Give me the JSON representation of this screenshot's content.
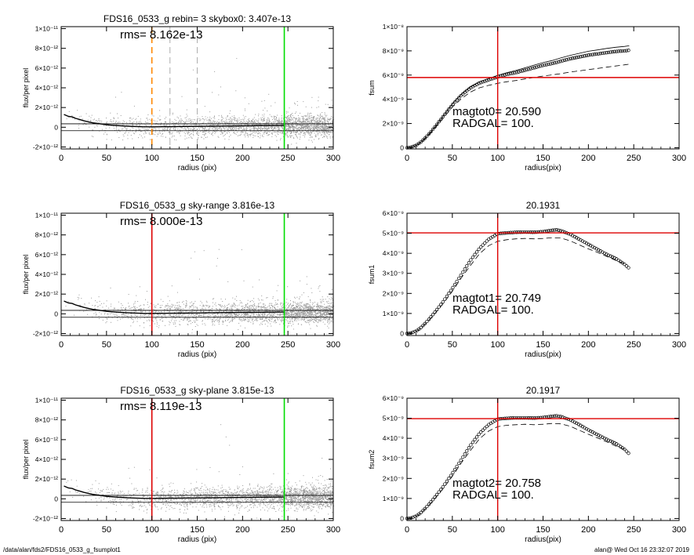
{
  "footer": {
    "path": "/data/alan/fds2/FDS16_0533_g_fsumplot1",
    "stamp": "alan@  Wed Oct 16 23:32:07 2019"
  },
  "chart_data": [
    {
      "type": "scatter",
      "title": "FDS16_0533_g rebin= 3    skybox0:  3.407e-13",
      "annotation": "rms= 8.162e-13",
      "xlabel": "radius (pix)",
      "ylabel": "flux/per pixel",
      "xlim": [
        0,
        300
      ],
      "ylim": [
        -2.2e-12,
        1.02e-11
      ],
      "xticks": [
        "0",
        "50",
        "100",
        "150",
        "200",
        "250",
        "300"
      ],
      "yticks": [
        {
          "v": -2e-12,
          "label": "-2×10⁻¹²"
        },
        {
          "v": 0,
          "label": "0"
        },
        {
          "v": 2e-12,
          "label": "2×10⁻¹²"
        },
        {
          "v": 4e-12,
          "label": "4×10⁻¹²"
        },
        {
          "v": 6e-12,
          "label": "6×10⁻¹²"
        },
        {
          "v": 8e-12,
          "label": "8×10⁻¹²"
        },
        {
          "v": 1e-11,
          "label": "1×10⁻¹¹"
        }
      ],
      "vlines": [
        {
          "x": 100,
          "color": "#ff8800",
          "dash": true
        },
        {
          "x": 120,
          "color": "#9a9a9a",
          "dash": true
        },
        {
          "x": 150,
          "color": "#9a9a9a",
          "dash": true
        },
        {
          "x": 246,
          "color": "#00dd00",
          "dash": false
        }
      ],
      "profile": {
        "x": [
          3,
          8,
          12,
          16,
          20,
          25,
          30,
          35,
          40,
          45,
          50,
          60,
          70,
          80,
          90,
          100,
          120,
          140,
          160,
          180,
          200,
          220,
          246
        ],
        "y": [
          1.3e-12,
          1.1e-12,
          1.05e-12,
          9e-13,
          8e-13,
          6.5e-13,
          5.5e-13,
          4.5e-13,
          3.8e-13,
          3.2e-13,
          2.5e-13,
          1.8e-13,
          1.2e-13,
          8e-14,
          5e-14,
          4e-14,
          6e-14,
          8e-14,
          1e-13,
          1.2e-13,
          1.4e-13,
          1.6e-13,
          1.8e-13
        ]
      },
      "hlines": [
        3.5e-13,
        -3.5e-13
      ],
      "scatter_seed": 11
    },
    {
      "type": "line",
      "title": "",
      "xlabel": "radius(pix)",
      "ylabel": "fsum",
      "xlim": [
        0,
        300
      ],
      "ylim": [
        -1e-10,
        1e-08
      ],
      "xticks": [
        "0",
        "50",
        "100",
        "150",
        "200",
        "250",
        "300"
      ],
      "yticks": [
        {
          "v": 0,
          "label": "0"
        },
        {
          "v": 2e-09,
          "label": "2×10⁻⁹"
        },
        {
          "v": 4e-09,
          "label": "4×10⁻⁹"
        },
        {
          "v": 6e-09,
          "label": "6×10⁻⁹"
        },
        {
          "v": 8e-09,
          "label": "8×10⁻⁹"
        },
        {
          "v": 1e-08,
          "label": "1×10⁻⁸"
        }
      ],
      "annotations": [
        "magtot0=  20.590",
        "RADGAL=    100."
      ],
      "crosshair": {
        "x": 100,
        "y": 5.8e-09
      },
      "series": [
        {
          "name": "fsum",
          "style": "circles",
          "x": [
            0,
            5,
            10,
            15,
            20,
            25,
            30,
            40,
            50,
            60,
            70,
            80,
            90,
            100,
            110,
            120,
            130,
            140,
            150,
            160,
            170,
            180,
            190,
            200,
            210,
            220,
            230,
            240,
            245
          ],
          "y": [
            0,
            5e-11,
            2e-10,
            4.5e-10,
            8e-10,
            1.2e-09,
            1.65e-09,
            2.6e-09,
            3.55e-09,
            4.35e-09,
            4.95e-09,
            5.35e-09,
            5.6e-09,
            5.85e-09,
            6.05e-09,
            6.2e-09,
            6.4e-09,
            6.6e-09,
            6.8e-09,
            6.95e-09,
            7.15e-09,
            7.35e-09,
            7.5e-09,
            7.65e-09,
            7.75e-09,
            7.85e-09,
            7.95e-09,
            8e-09,
            8.05e-09
          ]
        },
        {
          "name": "fsum-upper",
          "style": "solid",
          "x": [
            0,
            5,
            10,
            15,
            20,
            25,
            30,
            40,
            50,
            60,
            70,
            80,
            90,
            100,
            110,
            120,
            130,
            140,
            150,
            160,
            170,
            180,
            190,
            200,
            210,
            220,
            230,
            240,
            245
          ],
          "y": [
            0,
            5e-11,
            2e-10,
            4.5e-10,
            8e-10,
            1.2e-09,
            1.65e-09,
            2.62e-09,
            3.6e-09,
            4.4e-09,
            5.02e-09,
            5.45e-09,
            5.72e-09,
            5.98e-09,
            6.2e-09,
            6.38e-09,
            6.6e-09,
            6.82e-09,
            7.03e-09,
            7.2e-09,
            7.42e-09,
            7.63e-09,
            7.8e-09,
            7.97e-09,
            8.08e-09,
            8.2e-09,
            8.3e-09,
            8.37e-09,
            8.42e-09
          ]
        },
        {
          "name": "fsum-lower",
          "style": "dashed",
          "x": [
            0,
            5,
            10,
            15,
            20,
            25,
            30,
            40,
            50,
            60,
            70,
            80,
            90,
            100,
            110,
            120,
            130,
            140,
            150,
            160,
            170,
            180,
            190,
            200,
            210,
            220,
            230,
            240,
            245
          ],
          "y": [
            0,
            4e-11,
            1.8e-10,
            4.2e-10,
            7.5e-10,
            1.12e-09,
            1.55e-09,
            2.45e-09,
            3.35e-09,
            4.05e-09,
            4.6e-09,
            4.95e-09,
            5.15e-09,
            5.32e-09,
            5.45e-09,
            5.55e-09,
            5.68e-09,
            5.8e-09,
            5.92e-09,
            6.02e-09,
            6.12e-09,
            6.25e-09,
            6.35e-09,
            6.45e-09,
            6.55e-09,
            6.65e-09,
            6.75e-09,
            6.85e-09,
            6.9e-09
          ]
        }
      ]
    },
    {
      "type": "scatter",
      "title": "FDS16_0533_g sky-range  3.816e-13",
      "annotation": "rms= 8.000e-13",
      "xlabel": "radius (pix)",
      "ylabel": "flux/per pixel",
      "xlim": [
        0,
        300
      ],
      "ylim": [
        -2.2e-12,
        1.02e-11
      ],
      "xticks": [
        "0",
        "50",
        "100",
        "150",
        "200",
        "250",
        "300"
      ],
      "yticks": [
        {
          "v": -2e-12,
          "label": "-2×10⁻¹²"
        },
        {
          "v": 0,
          "label": "0"
        },
        {
          "v": 2e-12,
          "label": "2×10⁻¹²"
        },
        {
          "v": 4e-12,
          "label": "4×10⁻¹²"
        },
        {
          "v": 6e-12,
          "label": "6×10⁻¹²"
        },
        {
          "v": 8e-12,
          "label": "8×10⁻¹²"
        },
        {
          "v": 1e-11,
          "label": "1×10⁻¹¹"
        }
      ],
      "vlines": [
        {
          "x": 100,
          "color": "#dd0000",
          "dash": false
        },
        {
          "x": 246,
          "color": "#00dd00",
          "dash": false
        }
      ],
      "profile": {
        "x": [
          3,
          8,
          12,
          16,
          20,
          25,
          30,
          35,
          40,
          45,
          50,
          60,
          70,
          80,
          90,
          100,
          120,
          140,
          160,
          180,
          200,
          220,
          246
        ],
        "y": [
          1.3e-12,
          1.1e-12,
          1.05e-12,
          9e-13,
          8e-13,
          6.5e-13,
          5.5e-13,
          4.5e-13,
          3.8e-13,
          3.2e-13,
          2.5e-13,
          1.8e-13,
          1.2e-13,
          8e-14,
          5e-14,
          4e-14,
          6e-14,
          8e-14,
          1e-13,
          1.2e-13,
          1.4e-13,
          1.6e-13,
          1.8e-13
        ]
      },
      "hlines": [
        3.5e-13,
        -3.5e-13
      ],
      "scatter_seed": 23
    },
    {
      "type": "line",
      "title": "20.1931",
      "xlabel": "radius(pix)",
      "ylabel": "fsum1",
      "xlim": [
        0,
        300
      ],
      "ylim": [
        -1e-10,
        6e-09
      ],
      "xticks": [
        "0",
        "50",
        "100",
        "150",
        "200",
        "250",
        "300"
      ],
      "yticks": [
        {
          "v": 0,
          "label": "0"
        },
        {
          "v": 1e-09,
          "label": "1×10⁻⁹"
        },
        {
          "v": 2e-09,
          "label": "2×10⁻⁹"
        },
        {
          "v": 3e-09,
          "label": "3×10⁻⁹"
        },
        {
          "v": 4e-09,
          "label": "4×10⁻⁹"
        },
        {
          "v": 5e-09,
          "label": "5×10⁻⁹"
        },
        {
          "v": 6e-09,
          "label": "6×10⁻⁹"
        }
      ],
      "annotations": [
        "magtot1=  20.749",
        "RADGAL=    100."
      ],
      "crosshair": {
        "x": 100,
        "y": 5.02e-09
      },
      "series": [
        {
          "name": "fsum1",
          "style": "circles",
          "x": [
            0,
            5,
            10,
            15,
            20,
            25,
            30,
            40,
            50,
            60,
            70,
            80,
            90,
            100,
            110,
            120,
            130,
            140,
            150,
            160,
            165,
            170,
            180,
            190,
            200,
            210,
            220,
            230,
            240,
            245
          ],
          "y": [
            0,
            3e-11,
            1.2e-10,
            2.8e-10,
            5e-10,
            7.5e-10,
            1.02e-09,
            1.6e-09,
            2.25e-09,
            2.95e-09,
            3.65e-09,
            4.25e-09,
            4.7e-09,
            4.98e-09,
            5.02e-09,
            5.05e-09,
            5.06e-09,
            5.05e-09,
            5.08e-09,
            5.15e-09,
            5.17e-09,
            5.12e-09,
            4.95e-09,
            4.7e-09,
            4.45e-09,
            4.2e-09,
            3.95e-09,
            3.75e-09,
            3.45e-09,
            3.25e-09
          ]
        },
        {
          "name": "fsum1-lower",
          "style": "dashed",
          "x": [
            0,
            5,
            10,
            15,
            20,
            25,
            30,
            40,
            50,
            60,
            70,
            80,
            90,
            100,
            110,
            120,
            130,
            140,
            150,
            160,
            170,
            180,
            190,
            200,
            210,
            220,
            230,
            240
          ],
          "y": [
            0,
            3e-11,
            1.1e-10,
            2.6e-10,
            4.7e-10,
            7e-10,
            9.5e-10,
            1.5e-09,
            2.1e-09,
            2.78e-09,
            3.4e-09,
            3.98e-09,
            4.38e-09,
            4.6e-09,
            4.68e-09,
            4.72e-09,
            4.74e-09,
            4.72e-09,
            4.74e-09,
            4.78e-09,
            4.76e-09,
            4.62e-09,
            4.42e-09,
            4.22e-09,
            4.05e-09,
            3.85e-09,
            3.65e-09,
            3.48e-09
          ]
        }
      ]
    },
    {
      "type": "scatter",
      "title": "FDS16_0533_g sky-plane  3.815e-13",
      "annotation": "rms= 8.119e-13",
      "xlabel": "radius (pix)",
      "ylabel": "flux/per pixel",
      "xlim": [
        0,
        300
      ],
      "ylim": [
        -2.2e-12,
        1.02e-11
      ],
      "xticks": [
        "0",
        "50",
        "100",
        "150",
        "200",
        "250",
        "300"
      ],
      "yticks": [
        {
          "v": -2e-12,
          "label": "-2×10⁻¹²"
        },
        {
          "v": 0,
          "label": "0"
        },
        {
          "v": 2e-12,
          "label": "2×10⁻¹²"
        },
        {
          "v": 4e-12,
          "label": "4×10⁻¹²"
        },
        {
          "v": 6e-12,
          "label": "6×10⁻¹²"
        },
        {
          "v": 8e-12,
          "label": "8×10⁻¹²"
        },
        {
          "v": 1e-11,
          "label": "1×10⁻¹¹"
        }
      ],
      "vlines": [
        {
          "x": 100,
          "color": "#dd0000",
          "dash": false
        },
        {
          "x": 246,
          "color": "#00dd00",
          "dash": false
        }
      ],
      "profile": {
        "x": [
          3,
          8,
          12,
          16,
          20,
          25,
          30,
          35,
          40,
          45,
          50,
          60,
          70,
          80,
          90,
          100,
          120,
          140,
          160,
          180,
          200,
          220,
          246
        ],
        "y": [
          1.3e-12,
          1.1e-12,
          1.05e-12,
          9e-13,
          8e-13,
          6.5e-13,
          5.5e-13,
          4.5e-13,
          3.8e-13,
          3.2e-13,
          2.5e-13,
          1.8e-13,
          1.2e-13,
          8e-14,
          5e-14,
          4e-14,
          6e-14,
          8e-14,
          1e-13,
          1.2e-13,
          1.4e-13,
          1.6e-13,
          1.8e-13
        ]
      },
      "hlines": [
        3.5e-13,
        -3.5e-13
      ],
      "scatter_seed": 37
    },
    {
      "type": "line",
      "title": "20.1917",
      "xlabel": "radius(pix)",
      "ylabel": "fsum2",
      "xlim": [
        0,
        300
      ],
      "ylim": [
        -1e-10,
        6e-09
      ],
      "xticks": [
        "0",
        "50",
        "100",
        "150",
        "200",
        "250",
        "300"
      ],
      "yticks": [
        {
          "v": 0,
          "label": "0"
        },
        {
          "v": 1e-09,
          "label": "1×10⁻⁹"
        },
        {
          "v": 2e-09,
          "label": "2×10⁻⁹"
        },
        {
          "v": 3e-09,
          "label": "3×10⁻⁹"
        },
        {
          "v": 4e-09,
          "label": "4×10⁻⁹"
        },
        {
          "v": 5e-09,
          "label": "5×10⁻⁹"
        },
        {
          "v": 6e-09,
          "label": "6×10⁻⁹"
        }
      ],
      "annotations": [
        "magtot2=  20.758",
        "RADGAL=    100."
      ],
      "crosshair": {
        "x": 100,
        "y": 4.98e-09
      },
      "series": [
        {
          "name": "fsum2",
          "style": "circles",
          "x": [
            0,
            5,
            10,
            15,
            20,
            25,
            30,
            40,
            50,
            60,
            70,
            80,
            90,
            100,
            110,
            120,
            130,
            140,
            150,
            160,
            165,
            170,
            180,
            190,
            200,
            210,
            220,
            230,
            240,
            245
          ],
          "y": [
            0,
            3e-11,
            1.2e-10,
            2.8e-10,
            5e-10,
            7.5e-10,
            1.02e-09,
            1.6e-09,
            2.25e-09,
            2.95e-09,
            3.65e-09,
            4.25e-09,
            4.68e-09,
            4.96e-09,
            5e-09,
            5.02e-09,
            5.02e-09,
            5.01e-09,
            5.04e-09,
            5.1e-09,
            5.12e-09,
            5.08e-09,
            4.92e-09,
            4.68e-09,
            4.42e-09,
            4.18e-09,
            3.95e-09,
            3.75e-09,
            3.45e-09,
            3.22e-09
          ]
        },
        {
          "name": "fsum2-lower",
          "style": "dashed",
          "x": [
            0,
            5,
            10,
            15,
            20,
            25,
            30,
            40,
            50,
            60,
            70,
            80,
            90,
            100,
            110,
            120,
            130,
            140,
            150,
            160,
            170,
            180,
            190,
            200,
            210,
            220,
            230,
            240
          ],
          "y": [
            0,
            3e-11,
            1.1e-10,
            2.6e-10,
            4.7e-10,
            7e-10,
            9.5e-10,
            1.5e-09,
            2.1e-09,
            2.78e-09,
            3.4e-09,
            3.98e-09,
            4.36e-09,
            4.58e-09,
            4.65e-09,
            4.68e-09,
            4.7e-09,
            4.68e-09,
            4.7e-09,
            4.74e-09,
            4.72e-09,
            4.6e-09,
            4.4e-09,
            4.2e-09,
            4.02e-09,
            3.83e-09,
            3.62e-09,
            3.45e-09
          ]
        }
      ]
    }
  ]
}
